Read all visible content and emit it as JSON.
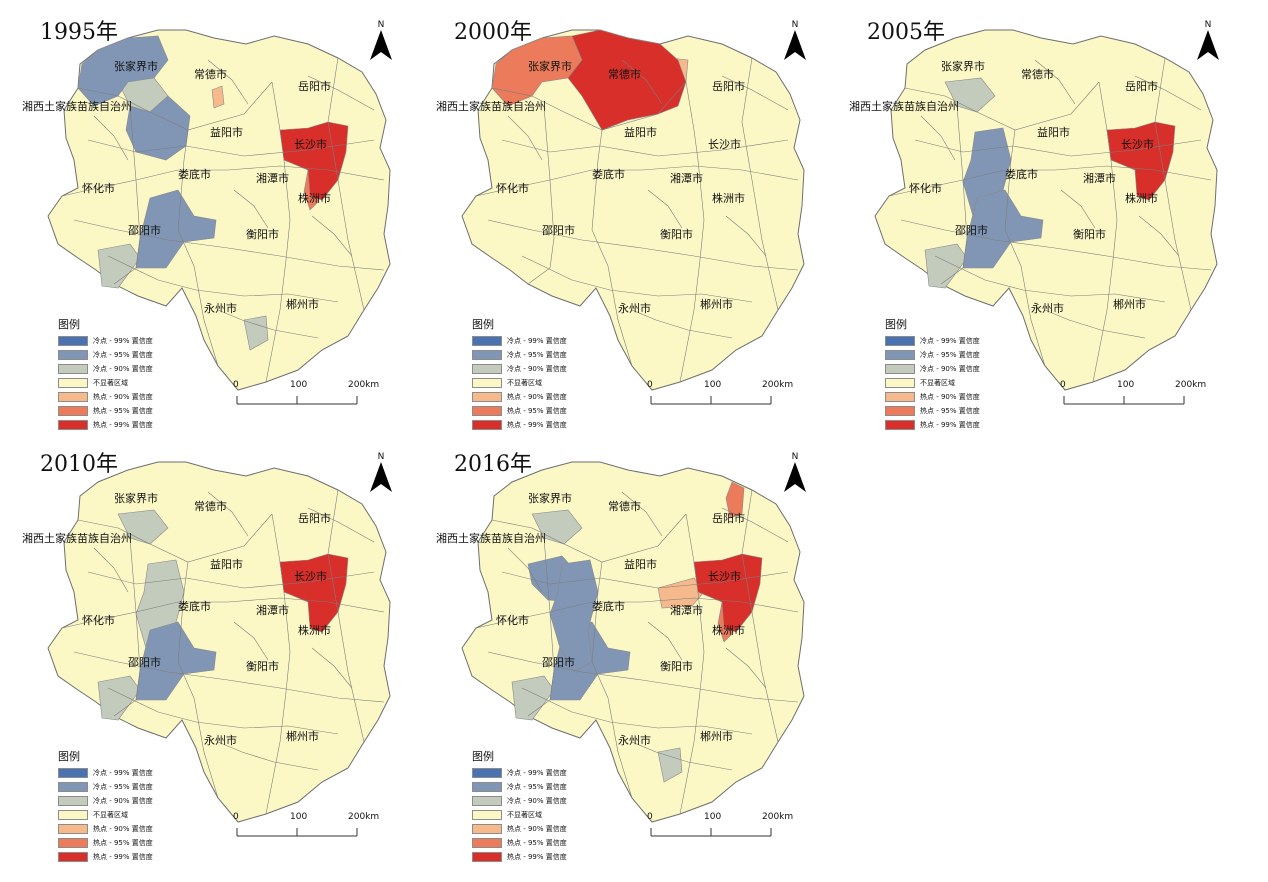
{
  "legend": {
    "title": "图例",
    "items": [
      {
        "label": "冷点 - 99% 置信度",
        "color": "#4a72b0"
      },
      {
        "label": "冷点 - 95% 置信度",
        "color": "#8196b4"
      },
      {
        "label": "冷点 - 90% 置信度",
        "color": "#c3cbbd"
      },
      {
        "label": "不显著区域",
        "color": "#fbf8c6"
      },
      {
        "label": "热点 - 90% 置信度",
        "color": "#f5b98c"
      },
      {
        "label": "热点 - 95% 置信度",
        "color": "#eb7b5a"
      },
      {
        "label": "热点 - 99% 置信度",
        "color": "#d82f2b"
      }
    ]
  },
  "scale_bar": {
    "labels": [
      "0",
      "100",
      "200km"
    ]
  },
  "north_arrow_label": "N",
  "cities": {
    "zhangjiajie": "张家界市",
    "changde": "常德市",
    "yueyang": "岳阳市",
    "xiangxi": "湘西土家族苗族自治州",
    "yiyang": "益阳市",
    "changsha": "长沙市",
    "loudi": "娄底市",
    "xiangtan": "湘潭市",
    "huaihua": "怀化市",
    "zhuzhou": "株洲市",
    "shaoyang": "邵阳市",
    "hengyang": "衡阳市",
    "yongzhou": "永州市",
    "chenzhou": "郴州市"
  },
  "panels": [
    {
      "year": "1995年",
      "hot99": [
        "changsha"
      ],
      "hot95": [
        "zhuzhou_n"
      ],
      "hot90": [
        "changde_s"
      ],
      "cold95": [
        "zhangjiajie",
        "yiyang_w",
        "shaoyang"
      ],
      "cold90": [
        "xiangxi_n",
        "huaihua_s",
        "yongzhou_e"
      ]
    },
    {
      "year": "2000年",
      "hot99": [
        "changde"
      ],
      "hot95": [
        "zhangjiajie"
      ],
      "hot90": [
        "yueyang_w"
      ],
      "cold95": [],
      "cold90": []
    },
    {
      "year": "2005年",
      "hot99": [
        "changsha"
      ],
      "hot95": [
        "changsha_w"
      ],
      "hot90": [],
      "cold95": [
        "loudi_w",
        "shaoyang"
      ],
      "cold90": [
        "xiangxi_n",
        "huaihua_s"
      ]
    },
    {
      "year": "2010年",
      "hot99": [
        "changsha"
      ],
      "hot95": [
        "changsha_w"
      ],
      "hot90": [],
      "cold95": [
        "shaoyang"
      ],
      "cold90": [
        "xiangxi_n",
        "huaihua_s",
        "loudi_w"
      ]
    },
    {
      "year": "2016年",
      "hot99": [
        "changsha"
      ],
      "hot95": [
        "yueyang_n",
        "zhuzhou_n"
      ],
      "hot90": [
        "yiyang_e"
      ],
      "cold95": [
        "xiangxi_c",
        "shaoyang",
        "loudi_w"
      ],
      "cold90": [
        "xiangxi_n",
        "huaihua_s",
        "yongzhou_e"
      ]
    }
  ]
}
